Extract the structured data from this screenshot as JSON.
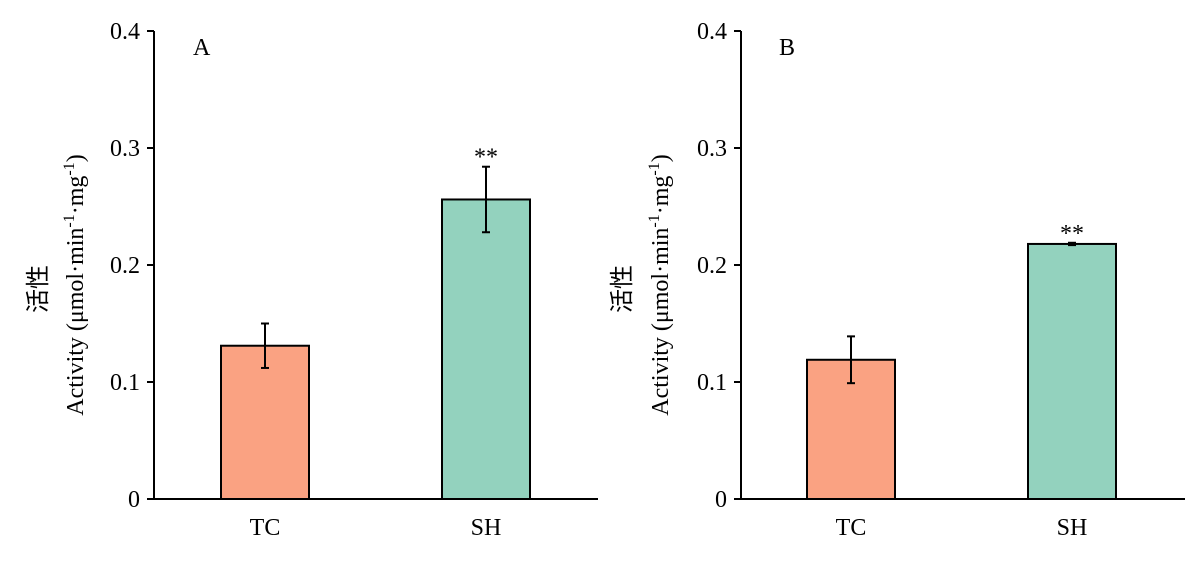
{
  "chart_data": [
    {
      "type": "bar",
      "panel_label": "A",
      "categories": [
        "TC",
        "SH"
      ],
      "values": [
        0.131,
        0.256
      ],
      "error": [
        0.019,
        0.028
      ],
      "significance": [
        "",
        "**"
      ],
      "colors": [
        "#FAA282",
        "#93D2BE"
      ],
      "ylabel_cn": "活性",
      "ylabel_en": "Activity (μmol·min",
      "ylabel_sup1": "-1",
      "ylabel_mid": "·mg",
      "ylabel_sup2": "-1",
      "ylabel_end": ")",
      "ylim": [
        0,
        0.4
      ],
      "yticks": [
        0,
        0.1,
        0.2,
        0.3,
        0.4
      ],
      "ytick_labels": [
        "0",
        "0.1",
        "0.2",
        "0.3",
        "0.4"
      ],
      "grid": false
    },
    {
      "type": "bar",
      "panel_label": "B",
      "categories": [
        "TC",
        "SH"
      ],
      "values": [
        0.119,
        0.218
      ],
      "error": [
        0.02,
        0.001
      ],
      "significance": [
        "",
        "**"
      ],
      "colors": [
        "#FAA282",
        "#93D2BE"
      ],
      "ylabel_cn": "活性",
      "ylabel_en": "Activity (μmol·min",
      "ylabel_sup1": "-1",
      "ylabel_mid": "·mg",
      "ylabel_sup2": "-1",
      "ylabel_end": ")",
      "ylim": [
        0,
        0.4
      ],
      "yticks": [
        0,
        0.1,
        0.2,
        0.3,
        0.4
      ],
      "ytick_labels": [
        "0",
        "0.1",
        "0.2",
        "0.3",
        "0.4"
      ],
      "grid": false
    }
  ]
}
